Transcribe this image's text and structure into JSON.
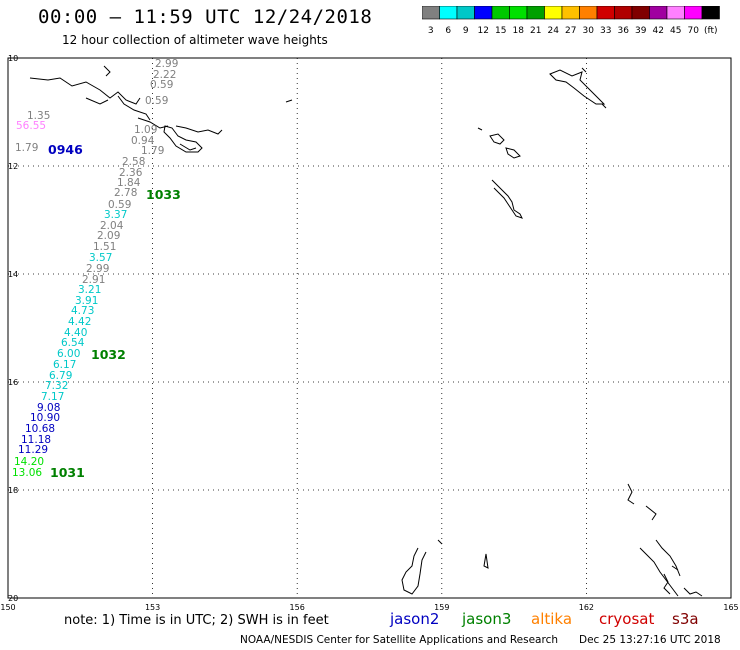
{
  "header": {
    "title": "00:00 – 11:59 UTC 12/24/2018",
    "subtitle": "12 hour collection of altimeter wave heights"
  },
  "scale": {
    "colors": [
      "#808080",
      "#00ffff",
      "#00c8c8",
      "#0000ff",
      "#00c800",
      "#00e000",
      "#00a000",
      "#ffff00",
      "#ffc000",
      "#ff8000",
      "#d00000",
      "#b00000",
      "#800000",
      "#a000a0",
      "#ff80ff",
      "#ff00ff",
      "#000000"
    ],
    "labels": [
      "3",
      "6",
      "9",
      "12",
      "15",
      "18",
      "21",
      "24",
      "27",
      "30",
      "33",
      "36",
      "39",
      "42",
      "45",
      "70",
      "(ft)"
    ]
  },
  "map": {
    "x_ticks": [
      "150",
      "153",
      "156",
      "159",
      "162",
      "165"
    ],
    "y_ticks": [
      "10",
      "12",
      "14",
      "16",
      "18",
      "20"
    ]
  },
  "readings": [
    {
      "v": "2.99",
      "c": "#808080"
    },
    {
      "v": "2.22",
      "c": "#808080"
    },
    {
      "v": "0.59",
      "c": "#808080"
    },
    {
      "v": "0.59",
      "c": "#808080"
    },
    {
      "v": "1.35",
      "c": "#808080"
    },
    {
      "v": "56.55",
      "c": "#ff80ff"
    },
    {
      "v": "1.09",
      "c": "#808080"
    },
    {
      "v": "0.94",
      "c": "#808080"
    },
    {
      "v": "1.79",
      "c": "#808080"
    },
    {
      "v": "1.79",
      "c": "#808080"
    },
    {
      "v": "2.58",
      "c": "#808080"
    },
    {
      "v": "2.36",
      "c": "#808080"
    },
    {
      "v": "1.84",
      "c": "#808080"
    },
    {
      "v": "2.78",
      "c": "#808080"
    },
    {
      "v": "0.59",
      "c": "#808080"
    },
    {
      "v": "3.37",
      "c": "#00c8c8"
    },
    {
      "v": "2.04",
      "c": "#808080"
    },
    {
      "v": "2.09",
      "c": "#808080"
    },
    {
      "v": "1.51",
      "c": "#808080"
    },
    {
      "v": "3.57",
      "c": "#00c8c8"
    },
    {
      "v": "2.99",
      "c": "#808080"
    },
    {
      "v": "2.91",
      "c": "#808080"
    },
    {
      "v": "3.21",
      "c": "#00c8c8"
    },
    {
      "v": "3.91",
      "c": "#00c8c8"
    },
    {
      "v": "4.73",
      "c": "#00c8c8"
    },
    {
      "v": "4.42",
      "c": "#00c8c8"
    },
    {
      "v": "4.40",
      "c": "#00c8c8"
    },
    {
      "v": "6.54",
      "c": "#00c8c8"
    },
    {
      "v": "6.00",
      "c": "#00c8c8"
    },
    {
      "v": "6.17",
      "c": "#00c8c8"
    },
    {
      "v": "6.79",
      "c": "#00c8c8"
    },
    {
      "v": "7.32",
      "c": "#00c8c8"
    },
    {
      "v": "7.17",
      "c": "#00c8c8"
    },
    {
      "v": "9.08",
      "c": "#0000c0"
    },
    {
      "v": "10.90",
      "c": "#0000c0"
    },
    {
      "v": "10.68",
      "c": "#0000c0"
    },
    {
      "v": "11.18",
      "c": "#0000c0"
    },
    {
      "v": "11.29",
      "c": "#0000c0"
    },
    {
      "v": "14.20",
      "c": "#00e000"
    },
    {
      "v": "13.06",
      "c": "#00e000"
    }
  ],
  "times": [
    {
      "t": "0946",
      "c": "#0000c0"
    },
    {
      "t": "1033",
      "c": "#008000"
    },
    {
      "t": "1032",
      "c": "#008000"
    },
    {
      "t": "1031",
      "c": "#008000"
    }
  ],
  "footer": {
    "note": "note: 1) Time is in UTC; 2) SWH is in feet",
    "credit": "NOAA/NESDIS Center for Satellite Applications and Research",
    "stamp": "Dec 25 13:27:16 UTC 2018"
  },
  "legend": [
    {
      "name": "jason2",
      "color": "#0000c0"
    },
    {
      "name": "jason3",
      "color": "#008000"
    },
    {
      "name": "altika",
      "color": "#ff8000"
    },
    {
      "name": "cryosat",
      "color": "#d00000"
    },
    {
      "name": "s3a",
      "color": "#800000"
    }
  ]
}
